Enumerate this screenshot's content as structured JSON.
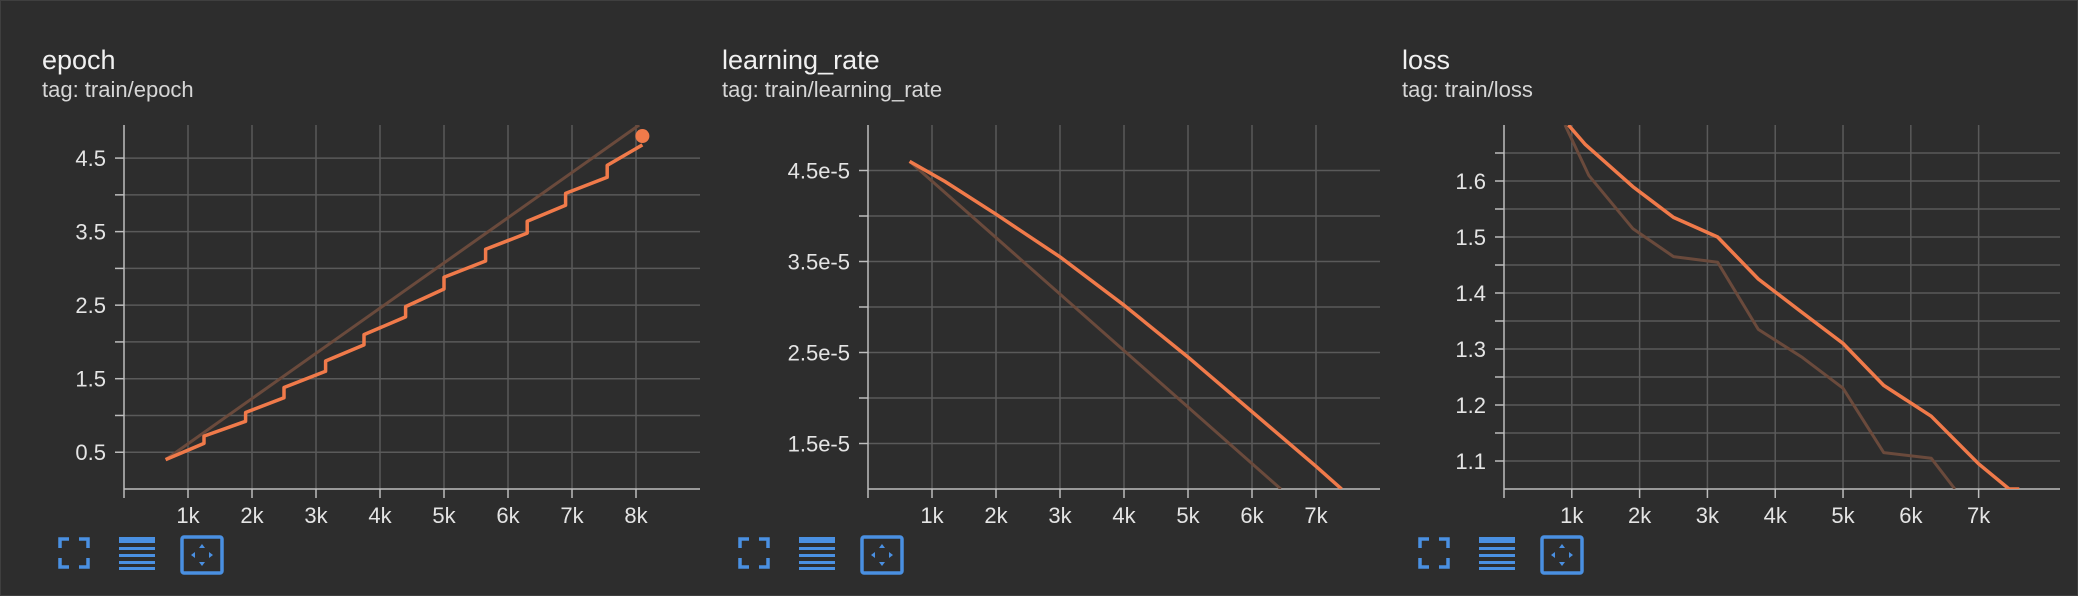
{
  "theme": {
    "background": "#2d2d2d",
    "line_color": "#f07a4a",
    "raw_line_color": "#6a4a3c",
    "grid_color": "#5a5a5a",
    "axis_color": "#bdbdbd",
    "icon_color": "#4a90e2"
  },
  "toolbar_icons": [
    "fullscreen-icon",
    "data-table-icon",
    "fit-domain-icon"
  ],
  "chart_data": [
    {
      "type": "line",
      "title": "epoch",
      "tag": "tag: train/epoch",
      "xlim": [
        0,
        9000
      ],
      "ylim": [
        0,
        4.95
      ],
      "xticks": [
        1000,
        2000,
        3000,
        4000,
        5000,
        6000,
        7000,
        8000
      ],
      "xtick_labels": [
        "1k",
        "2k",
        "3k",
        "4k",
        "5k",
        "6k",
        "7k",
        "8k"
      ],
      "yticks": [
        0.5,
        1.5,
        2.5,
        3.5,
        4.5
      ],
      "ytick_labels": [
        "0.5",
        "1.5",
        "2.5",
        "3.5",
        "4.5"
      ],
      "minor_yticks": [
        1.0,
        2.0,
        3.0,
        4.0
      ],
      "grid": true,
      "series": [
        {
          "role": "raw",
          "x": [
            650,
            8050
          ],
          "y": [
            0.4,
            4.95
          ]
        },
        {
          "role": "smoothed",
          "x": [
            650,
            1250,
            1250,
            1900,
            1900,
            2500,
            2500,
            3150,
            3150,
            3750,
            3750,
            4400,
            4400,
            5000,
            5000,
            5650,
            5650,
            6300,
            6300,
            6900,
            6900,
            7550,
            7550,
            8100
          ],
          "y": [
            0.4,
            0.62,
            0.72,
            0.92,
            1.04,
            1.24,
            1.38,
            1.6,
            1.74,
            1.96,
            2.1,
            2.34,
            2.48,
            2.72,
            2.88,
            3.1,
            3.26,
            3.48,
            3.64,
            3.86,
            4.02,
            4.24,
            4.4,
            4.68
          ],
          "last_point": {
            "x": 8100,
            "y": 4.8
          }
        }
      ]
    },
    {
      "type": "line",
      "title": "learning_rate",
      "tag": "tag: train/learning_rate",
      "xlim": [
        0,
        8000
      ],
      "ylim": [
        1e-05,
        5e-05
      ],
      "xticks": [
        1000,
        2000,
        3000,
        4000,
        5000,
        6000,
        7000
      ],
      "xtick_labels": [
        "1k",
        "2k",
        "3k",
        "4k",
        "5k",
        "6k",
        "7k"
      ],
      "yticks": [
        1.5e-05,
        2.5e-05,
        3.5e-05,
        4.5e-05
      ],
      "ytick_labels": [
        "1.5e-5",
        "2.5e-5",
        "3.5e-5",
        "4.5e-5"
      ],
      "minor_yticks": [
        2e-05,
        3e-05,
        4e-05
      ],
      "grid": true,
      "series": [
        {
          "role": "raw",
          "x": [
            650,
            6450
          ],
          "y": [
            4.6e-05,
            1e-05
          ]
        },
        {
          "role": "smoothed",
          "x": [
            650,
            1200,
            2000,
            3000,
            4000,
            5000,
            6000,
            7000,
            7400
          ],
          "y": [
            4.6e-05,
            4.38e-05,
            4.02e-05,
            3.55e-05,
            3.02e-05,
            2.45e-05,
            1.85e-05,
            1.25e-05,
            1e-05
          ]
        }
      ]
    },
    {
      "type": "line",
      "title": "loss",
      "tag": "tag: train/loss",
      "xlim": [
        0,
        8200
      ],
      "ylim": [
        1.05,
        1.7
      ],
      "xticks": [
        1000,
        2000,
        3000,
        4000,
        5000,
        6000,
        7000
      ],
      "xtick_labels": [
        "1k",
        "2k",
        "3k",
        "4k",
        "5k",
        "6k",
        "7k"
      ],
      "yticks": [
        1.1,
        1.2,
        1.3,
        1.4,
        1.5,
        1.6
      ],
      "ytick_labels": [
        "1.1",
        "1.2",
        "1.3",
        "1.4",
        "1.5",
        "1.6"
      ],
      "minor_yticks": [
        1.15,
        1.25,
        1.35,
        1.45,
        1.55,
        1.65
      ],
      "grid": true,
      "series": [
        {
          "role": "raw",
          "x": [
            900,
            1250,
            1900,
            2500,
            3150,
            3750,
            4400,
            5000,
            5600,
            6300,
            6650
          ],
          "y": [
            1.7,
            1.61,
            1.515,
            1.465,
            1.455,
            1.335,
            1.285,
            1.23,
            1.115,
            1.105,
            1.05
          ]
        },
        {
          "role": "smoothed",
          "x": [
            950,
            1200,
            1900,
            2500,
            3150,
            3750,
            4400,
            5000,
            5600,
            6300,
            7000,
            7450,
            7600
          ],
          "y": [
            1.7,
            1.665,
            1.59,
            1.535,
            1.5,
            1.425,
            1.365,
            1.31,
            1.235,
            1.18,
            1.095,
            1.05,
            1.05
          ]
        }
      ]
    }
  ]
}
